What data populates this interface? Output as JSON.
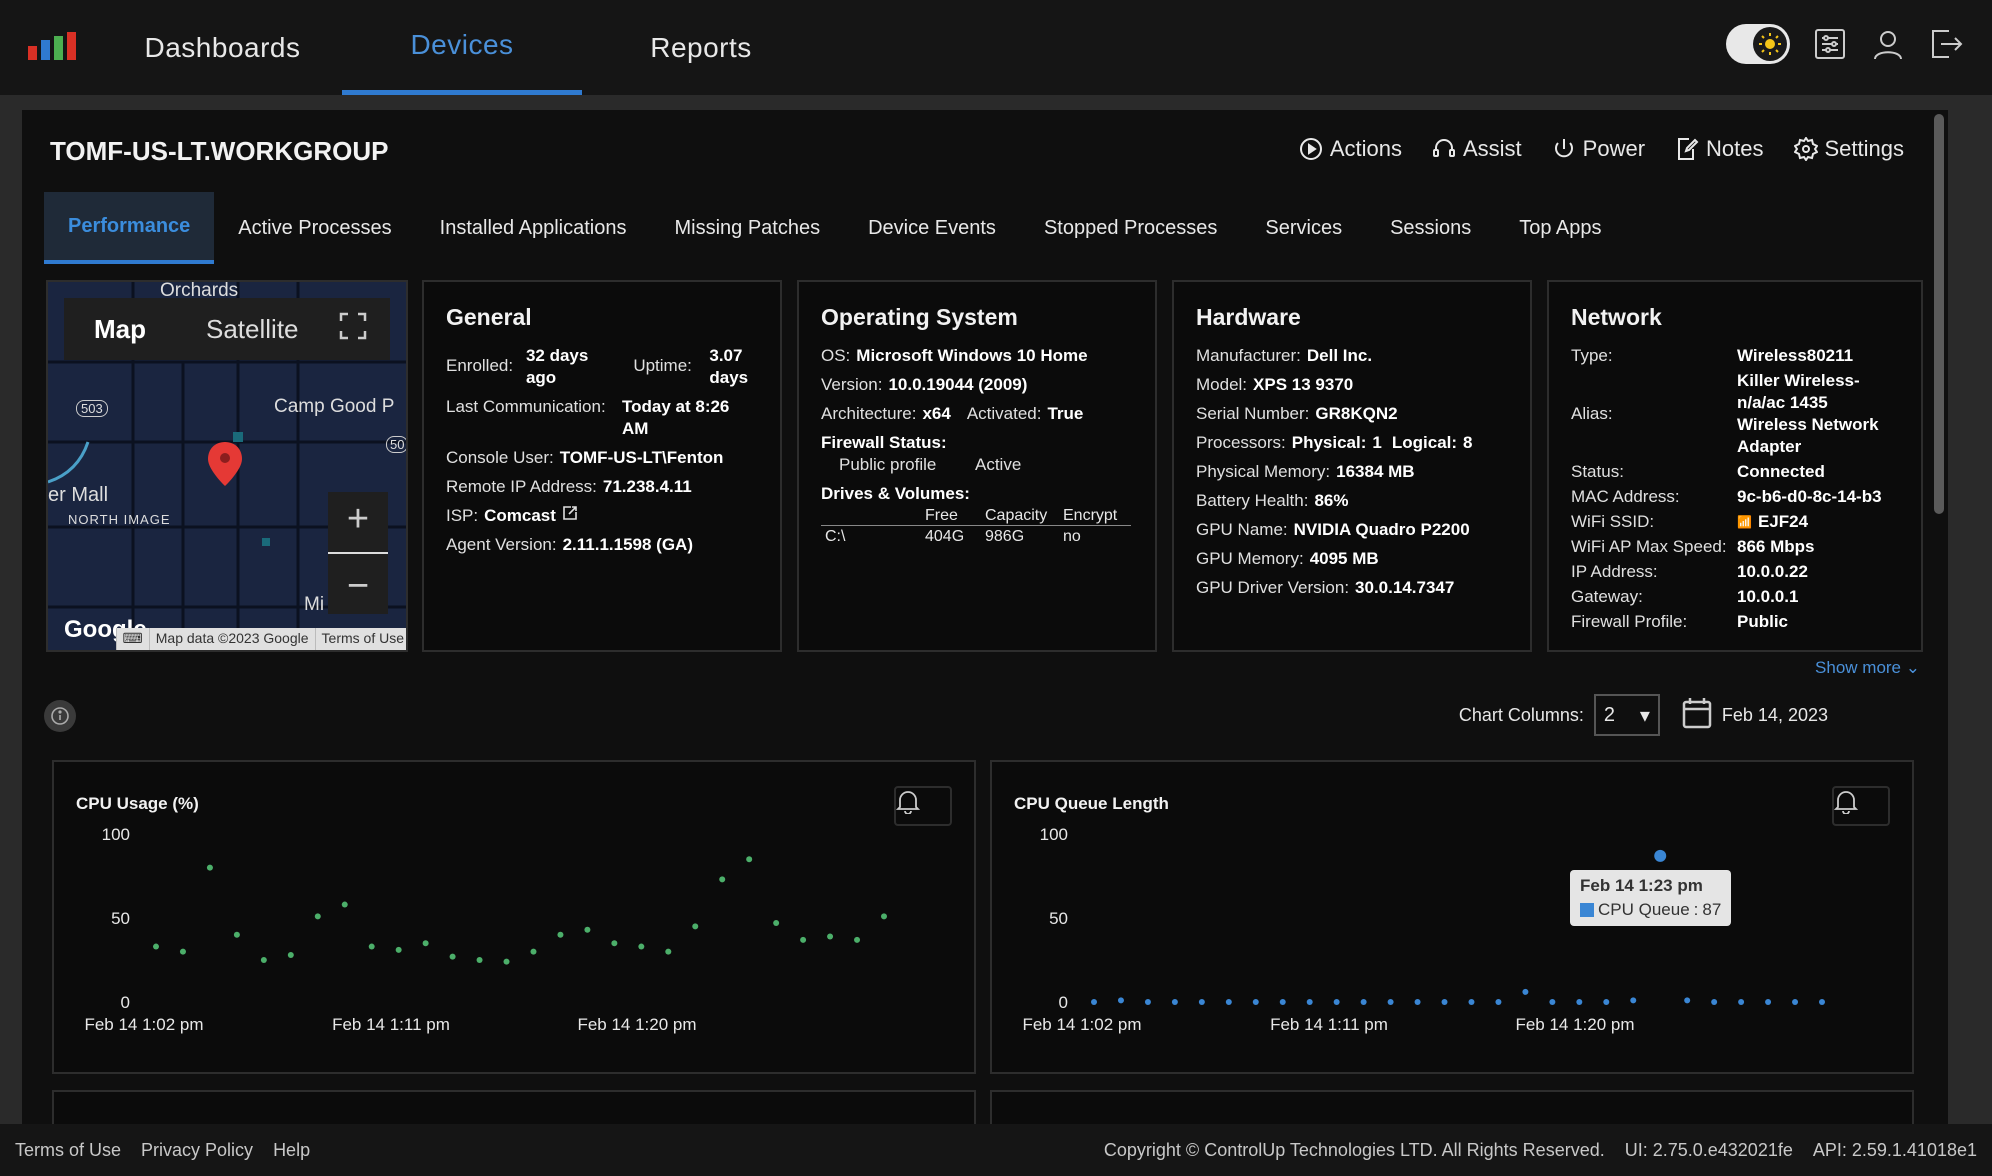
{
  "nav": {
    "links": [
      "Dashboards",
      "Devices",
      "Reports"
    ],
    "active": "Devices"
  },
  "device": {
    "title": "TOMF-US-LT.WORKGROUP",
    "actions": [
      "Actions",
      "Assist",
      "Power",
      "Notes",
      "Settings"
    ]
  },
  "tabs": [
    "Performance",
    "Active Processes",
    "Installed Applications",
    "Missing Patches",
    "Device Events",
    "Stopped Processes",
    "Services",
    "Sessions",
    "Top Apps"
  ],
  "map": {
    "mode_map": "Map",
    "mode_satellite": "Satellite",
    "labels": [
      "Orchards",
      "Camp Good P",
      "503",
      "50",
      "er Mall",
      "NORTH IMAGE",
      "Mi",
      "Google"
    ],
    "attribution": "Map data ©2023 Google",
    "terms": "Terms of Use"
  },
  "general": {
    "title": "General",
    "enrolled_label": "Enrolled:",
    "enrolled": "32 days ago",
    "uptime_label": "Uptime:",
    "uptime": "3.07 days",
    "lastcomm_label": "Last Communication:",
    "lastcomm": "Today at 8:26 AM",
    "console_label": "Console User:",
    "console": "TOMF-US-LT\\Fenton",
    "remote_label": "Remote IP Address:",
    "remote": "71.238.4.11",
    "isp_label": "ISP:",
    "isp": "Comcast",
    "agent_label": "Agent Version:",
    "agent": "2.11.1.1598 (GA)"
  },
  "os": {
    "title": "Operating System",
    "os_label": "OS:",
    "os": "Microsoft Windows 10 Home",
    "version_label": "Version:",
    "version": "10.0.19044 (2009)",
    "arch_label": "Architecture:",
    "arch": "x64",
    "activated_label": "Activated:",
    "activated": "True",
    "firewall_label": "Firewall Status:",
    "firewall_profile": "Public profile",
    "firewall_state": "Active",
    "drives_label": "Drives & Volumes:",
    "drive_headers": [
      "",
      "Free",
      "Capacity",
      "Encrypt"
    ],
    "drives": [
      [
        "C:\\",
        "404G",
        "986G",
        "no"
      ]
    ]
  },
  "hardware": {
    "title": "Hardware",
    "manufacturer_label": "Manufacturer:",
    "manufacturer": "Dell Inc.",
    "model_label": "Model:",
    "model": "XPS 13 9370",
    "serial_label": "Serial Number:",
    "serial": "GR8KQN2",
    "processors_label": "Processors:",
    "physical_label": "Physical:",
    "physical": "1",
    "logical_label": "Logical:",
    "logical": "8",
    "memory_label": "Physical Memory:",
    "memory": "16384 MB",
    "battery_label": "Battery Health:",
    "battery": "86%",
    "gpu_label": "GPU Name:",
    "gpu": "NVIDIA Quadro P2200",
    "gpumem_label": "GPU Memory:",
    "gpumem": "4095 MB",
    "gpudrv_label": "GPU Driver Version:",
    "gpudrv": "30.0.14.7347"
  },
  "network": {
    "title": "Network",
    "rows": [
      [
        "Type:",
        "Wireless80211"
      ],
      [
        "Alias:",
        "Killer Wireless-n/a/ac 1435 Wireless Network Adapter"
      ],
      [
        "Status:",
        "Connected"
      ],
      [
        "MAC Address:",
        "9c-b6-d0-8c-14-b3"
      ],
      [
        "WiFi SSID:",
        "EJF24"
      ],
      [
        "WiFi AP Max Speed:",
        "866 Mbps"
      ],
      [
        "IP Address:",
        "10.0.0.22"
      ],
      [
        "Gateway:",
        "10.0.0.1"
      ],
      [
        "Firewall Profile:",
        "Public"
      ]
    ],
    "show_more": "Show more"
  },
  "chart_controls": {
    "columns_label": "Chart Columns:",
    "columns_value": "2",
    "date": "Feb 14, 2023"
  },
  "chart_data": [
    {
      "type": "scatter",
      "title": "CPU Usage (%)",
      "ylim": [
        0,
        100
      ],
      "yticks": [
        "100",
        "50",
        "0"
      ],
      "xticks": [
        "Feb 14 1:02 pm",
        "Feb 14 1:11 pm",
        "Feb 14 1:20 pm"
      ],
      "color": "#4caf6a",
      "values": [
        33,
        30,
        80,
        40,
        25,
        28,
        51,
        58,
        33,
        31,
        35,
        27,
        25,
        24,
        30,
        40,
        43,
        35,
        33,
        30,
        45,
        73,
        85,
        47,
        37,
        39,
        37,
        51
      ]
    },
    {
      "type": "scatter",
      "title": "CPU Queue Length",
      "ylim": [
        0,
        100
      ],
      "yticks": [
        "100",
        "50",
        "0"
      ],
      "xticks": [
        "Feb 14 1:02 pm",
        "Feb 14 1:11 pm",
        "Feb 14 1:20 pm"
      ],
      "color": "#3a86d4",
      "values": [
        0,
        1,
        0,
        0,
        0,
        0,
        0,
        0,
        0,
        0,
        0,
        0,
        0,
        0,
        0,
        0,
        6,
        0,
        0,
        0,
        1,
        87,
        1,
        0,
        0,
        0,
        0,
        0
      ],
      "tooltip": {
        "title": "Feb 14 1:23 pm",
        "series": "CPU Queue",
        "value": "87"
      }
    }
  ],
  "footer": {
    "links": [
      "Terms of Use",
      "Privacy Policy",
      "Help"
    ],
    "copyright": "Copyright © ControlUp Technologies LTD. All Rights Reserved.",
    "ui_version": "UI: 2.75.0.e432021fe",
    "api_version": "API: 2.59.1.41018e1"
  }
}
